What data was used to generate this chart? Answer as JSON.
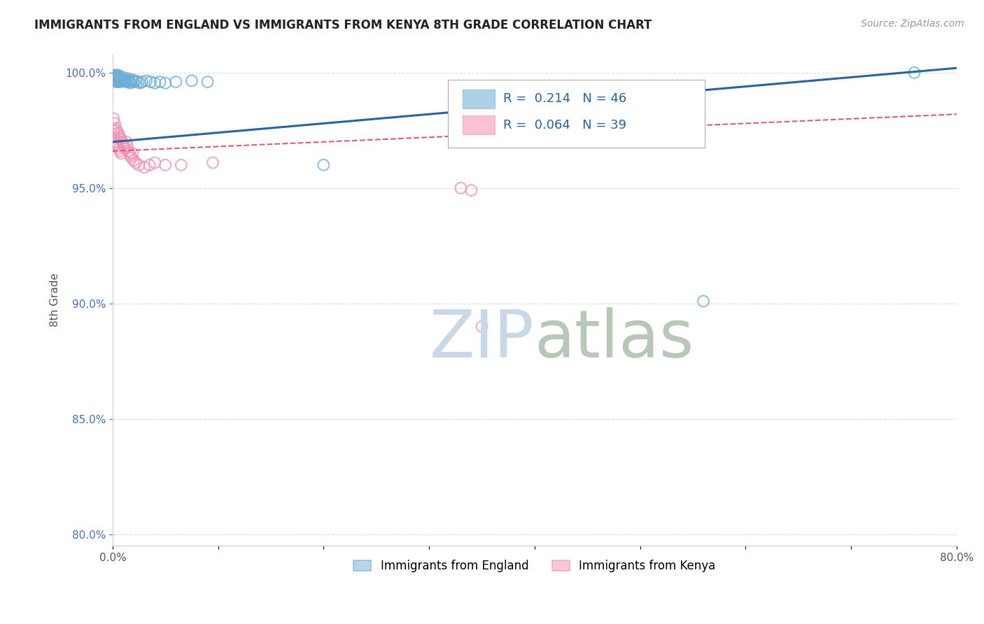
{
  "title": "IMMIGRANTS FROM ENGLAND VS IMMIGRANTS FROM KENYA 8TH GRADE CORRELATION CHART",
  "source": "Source: ZipAtlas.com",
  "ylabel": "8th Grade",
  "legend_england": "Immigrants from England",
  "legend_kenya": "Immigrants from Kenya",
  "england_R": 0.214,
  "england_N": 46,
  "kenya_R": 0.064,
  "kenya_N": 39,
  "england_color": "#6baed6",
  "kenya_color": "#f48fb1",
  "trend_england_color": "#2166ac",
  "trend_kenya_color": "#e05a7a",
  "xlim": [
    0.0,
    0.8
  ],
  "ylim": [
    0.795,
    1.008
  ],
  "england_x": [
    0.001,
    0.001,
    0.002,
    0.002,
    0.003,
    0.003,
    0.003,
    0.004,
    0.004,
    0.005,
    0.005,
    0.005,
    0.006,
    0.006,
    0.007,
    0.007,
    0.008,
    0.008,
    0.009,
    0.01,
    0.01,
    0.011,
    0.012,
    0.013,
    0.014,
    0.015,
    0.016,
    0.017,
    0.018,
    0.019,
    0.02,
    0.022,
    0.024,
    0.026,
    0.028,
    0.032,
    0.036,
    0.04,
    0.045,
    0.05,
    0.06,
    0.075,
    0.09,
    0.2,
    0.56,
    0.76
  ],
  "england_y": [
    0.9985,
    0.997,
    0.999,
    0.9975,
    0.9985,
    0.997,
    0.996,
    0.998,
    0.9965,
    0.999,
    0.9975,
    0.996,
    0.9985,
    0.997,
    0.998,
    0.9965,
    0.9975,
    0.996,
    0.997,
    0.998,
    0.9965,
    0.997,
    0.9965,
    0.996,
    0.9975,
    0.9965,
    0.996,
    0.9955,
    0.997,
    0.9965,
    0.996,
    0.9965,
    0.996,
    0.9955,
    0.996,
    0.9965,
    0.996,
    0.9955,
    0.996,
    0.9955,
    0.996,
    0.9965,
    0.996,
    0.96,
    0.901,
    1.0
  ],
  "kenya_x": [
    0.001,
    0.001,
    0.002,
    0.002,
    0.003,
    0.003,
    0.004,
    0.004,
    0.005,
    0.005,
    0.006,
    0.006,
    0.007,
    0.007,
    0.008,
    0.008,
    0.009,
    0.01,
    0.011,
    0.012,
    0.013,
    0.014,
    0.015,
    0.016,
    0.017,
    0.018,
    0.019,
    0.02,
    0.022,
    0.025,
    0.03,
    0.035,
    0.04,
    0.05,
    0.065,
    0.095,
    0.33,
    0.34,
    0.35
  ],
  "kenya_y": [
    0.98,
    0.975,
    0.978,
    0.972,
    0.976,
    0.97,
    0.975,
    0.969,
    0.974,
    0.968,
    0.973,
    0.967,
    0.972,
    0.966,
    0.971,
    0.965,
    0.97,
    0.969,
    0.968,
    0.967,
    0.97,
    0.968,
    0.966,
    0.965,
    0.964,
    0.963,
    0.965,
    0.962,
    0.961,
    0.96,
    0.959,
    0.96,
    0.961,
    0.96,
    0.96,
    0.961,
    0.95,
    0.949,
    0.89
  ],
  "watermark_zip_color": "#c8d8e8",
  "watermark_atlas_color": "#b8c8b8",
  "background_color": "#ffffff"
}
